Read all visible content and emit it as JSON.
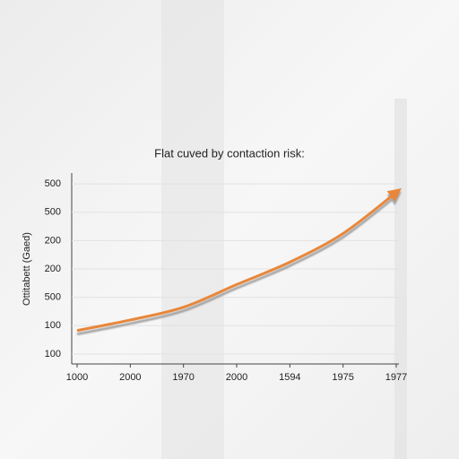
{
  "chart_data": {
    "type": "line",
    "title": "Flat cuved by contaction risk:",
    "y_label": "Ottitabett (Gaed)",
    "categories": [
      "1000",
      "2000",
      "1970",
      "2000",
      "1594",
      "1975",
      "1977"
    ],
    "series": [
      {
        "color": "#e8873a",
        "values": [
          0.83,
          1.2,
          1.65,
          2.45,
          3.24,
          4.25,
          5.7
        ]
      }
    ],
    "ylim": [
      -0.35,
      6.35
    ],
    "yticks": [
      {
        "value": 6,
        "label": "500"
      },
      {
        "value": 5,
        "label": "500"
      },
      {
        "value": 4,
        "label": "200"
      },
      {
        "value": 3,
        "label": "200"
      },
      {
        "value": 2,
        "label": "500"
      },
      {
        "value": 1,
        "label": "100"
      },
      {
        "value": 0,
        "label": "100"
      }
    ],
    "grid": true
  }
}
